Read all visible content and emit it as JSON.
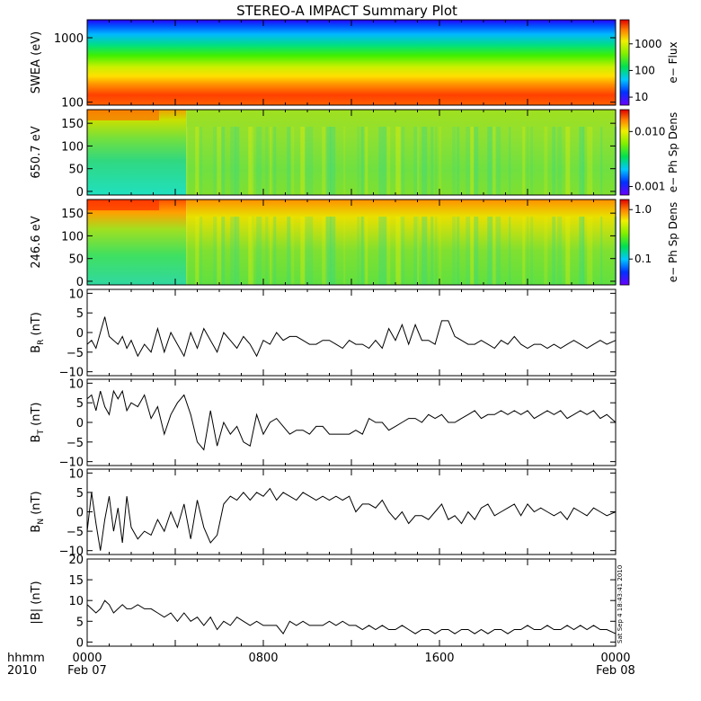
{
  "title": "STEREO-A IMPACT Summary Plot",
  "side_stamp": "Sat Sep  4 18:43:41 2010",
  "time_axis": {
    "corner_top": "hhmm",
    "corner_bottom": "2010",
    "ticks": [
      {
        "hours": 0,
        "label": "0000",
        "sublabel": "Feb 07"
      },
      {
        "hours": 8,
        "label": "0800",
        "sublabel": ""
      },
      {
        "hours": 16,
        "label": "1600",
        "sublabel": ""
      },
      {
        "hours": 24,
        "label": "0000",
        "sublabel": "Feb 08"
      }
    ],
    "range_hours": [
      0,
      24
    ]
  },
  "chart_data": [
    {
      "type": "heatmap",
      "id": "swea",
      "ylabel": "SWEA (eV)",
      "yscale": "log",
      "ylim": [
        90,
        1900
      ],
      "yticks": [
        {
          "v": 100,
          "label": "100"
        },
        {
          "v": 1000,
          "label": "1000"
        }
      ],
      "colorbar": {
        "label": "e− Flux",
        "scale": "log",
        "range": [
          5,
          8000
        ],
        "ticks": [
          {
            "v": 10,
            "label": "10"
          },
          {
            "v": 100,
            "label": "100"
          },
          {
            "v": 1000,
            "label": "1000"
          }
        ]
      }
    },
    {
      "type": "heatmap",
      "id": "pad650",
      "ylabel": "650.7 eV",
      "ylim": [
        -8,
        180
      ],
      "yticks": [
        {
          "v": 0,
          "label": "0"
        },
        {
          "v": 50,
          "label": "50"
        },
        {
          "v": 100,
          "label": "100"
        },
        {
          "v": 150,
          "label": "150"
        }
      ],
      "colorbar": {
        "label": "e− Ph Sp Dens",
        "scale": "log",
        "range": [
          0.0007,
          0.025
        ],
        "ticks": [
          {
            "v": 0.001,
            "label": "0.001"
          },
          {
            "v": 0.01,
            "label": "0.010"
          }
        ]
      }
    },
    {
      "type": "heatmap",
      "id": "pad246",
      "ylabel": "246.6 eV",
      "ylim": [
        -8,
        180
      ],
      "yticks": [
        {
          "v": 0,
          "label": "0"
        },
        {
          "v": 50,
          "label": "50"
        },
        {
          "v": 100,
          "label": "100"
        },
        {
          "v": 150,
          "label": "150"
        }
      ],
      "colorbar": {
        "label": "e− Ph Sp Dens",
        "scale": "log",
        "range": [
          0.03,
          1.6
        ],
        "ticks": [
          {
            "v": 0.1,
            "label": "0.1"
          },
          {
            "v": 1.0,
            "label": "1.0"
          }
        ]
      }
    },
    {
      "type": "line",
      "id": "br",
      "ylabel": "B",
      "ylabel_sub": "R",
      "ylabel_unit": " (nT)",
      "ylim": [
        -11,
        11
      ],
      "yticks": [
        {
          "v": -10,
          "label": "−10"
        },
        {
          "v": -5,
          "label": "−5"
        },
        {
          "v": 0,
          "label": "0"
        },
        {
          "v": 5,
          "label": "5"
        },
        {
          "v": 10,
          "label": "10"
        }
      ],
      "x": [
        0,
        0.2,
        0.4,
        0.6,
        0.8,
        1.0,
        1.2,
        1.4,
        1.6,
        1.8,
        2.0,
        2.3,
        2.6,
        2.9,
        3.2,
        3.5,
        3.8,
        4.1,
        4.4,
        4.7,
        5.0,
        5.3,
        5.6,
        5.9,
        6.2,
        6.5,
        6.8,
        7.1,
        7.4,
        7.7,
        8.0,
        8.3,
        8.6,
        8.9,
        9.2,
        9.5,
        9.8,
        10.1,
        10.4,
        10.7,
        11.0,
        11.3,
        11.6,
        11.9,
        12.2,
        12.5,
        12.8,
        13.1,
        13.4,
        13.7,
        14.0,
        14.3,
        14.6,
        14.9,
        15.2,
        15.5,
        15.8,
        16.1,
        16.4,
        16.7,
        17.0,
        17.3,
        17.6,
        17.9,
        18.2,
        18.5,
        18.8,
        19.1,
        19.4,
        19.7,
        20.0,
        20.3,
        20.6,
        20.9,
        21.2,
        21.5,
        21.8,
        22.1,
        22.4,
        22.7,
        23.0,
        23.3,
        23.6,
        24.0
      ],
      "y": [
        -3,
        -2,
        -4,
        0,
        4,
        -1,
        -2,
        -3,
        -1,
        -4,
        -2,
        -6,
        -3,
        -5,
        1,
        -5,
        0,
        -3,
        -6,
        0,
        -4,
        1,
        -2,
        -5,
        0,
        -2,
        -4,
        -1,
        -3,
        -6,
        -2,
        -3,
        0,
        -2,
        -1,
        -1,
        -2,
        -3,
        -3,
        -2,
        -2,
        -3,
        -4,
        -2,
        -3,
        -3,
        -4,
        -2,
        -4,
        1,
        -2,
        2,
        -3,
        2,
        -2,
        -2,
        -3,
        3,
        3,
        -1,
        -2,
        -3,
        -3,
        -2,
        -3,
        -4,
        -2,
        -3,
        -1,
        -3,
        -4,
        -3,
        -3,
        -4,
        -3,
        -4,
        -3,
        -2,
        -3,
        -4,
        -3,
        -2,
        -3,
        -2
      ]
    },
    {
      "type": "line",
      "id": "bt",
      "ylabel": "B",
      "ylabel_sub": "T",
      "ylabel_unit": " (nT)",
      "ylim": [
        -11,
        11
      ],
      "yticks": [
        {
          "v": -10,
          "label": "−10"
        },
        {
          "v": -5,
          "label": "−5"
        },
        {
          "v": 0,
          "label": "0"
        },
        {
          "v": 5,
          "label": "5"
        },
        {
          "v": 10,
          "label": "10"
        }
      ],
      "x": [
        0,
        0.2,
        0.4,
        0.6,
        0.8,
        1.0,
        1.2,
        1.4,
        1.6,
        1.8,
        2.0,
        2.3,
        2.6,
        2.9,
        3.2,
        3.5,
        3.8,
        4.1,
        4.4,
        4.7,
        5.0,
        5.3,
        5.6,
        5.9,
        6.2,
        6.5,
        6.8,
        7.1,
        7.4,
        7.7,
        8.0,
        8.3,
        8.6,
        8.9,
        9.2,
        9.5,
        9.8,
        10.1,
        10.4,
        10.7,
        11.0,
        11.3,
        11.6,
        11.9,
        12.2,
        12.5,
        12.8,
        13.1,
        13.4,
        13.7,
        14.0,
        14.3,
        14.6,
        14.9,
        15.2,
        15.5,
        15.8,
        16.1,
        16.4,
        16.7,
        17.0,
        17.3,
        17.6,
        17.9,
        18.2,
        18.5,
        18.8,
        19.1,
        19.4,
        19.7,
        20.0,
        20.3,
        20.6,
        20.9,
        21.2,
        21.5,
        21.8,
        22.1,
        22.4,
        22.7,
        23.0,
        23.3,
        23.6,
        24.0
      ],
      "y": [
        6,
        7,
        3,
        8,
        4,
        2,
        8,
        6,
        8,
        3,
        5,
        4,
        7,
        1,
        4,
        -3,
        2,
        5,
        7,
        2,
        -5,
        -7,
        3,
        -6,
        0,
        -3,
        -1,
        -5,
        -6,
        2,
        -3,
        0,
        1,
        -1,
        -3,
        -2,
        -2,
        -3,
        -1,
        -1,
        -3,
        -3,
        -3,
        -3,
        -2,
        -3,
        1,
        0,
        0,
        -2,
        -1,
        0,
        1,
        1,
        0,
        2,
        1,
        2,
        0,
        0,
        1,
        2,
        3,
        1,
        2,
        2,
        3,
        2,
        3,
        2,
        3,
        1,
        2,
        3,
        2,
        3,
        1,
        2,
        3,
        2,
        3,
        1,
        2,
        0
      ]
    },
    {
      "type": "line",
      "id": "bn",
      "ylabel": "B",
      "ylabel_sub": "N",
      "ylabel_unit": " (nT)",
      "ylim": [
        -11,
        11
      ],
      "yticks": [
        {
          "v": -10,
          "label": "−10"
        },
        {
          "v": -5,
          "label": "−5"
        },
        {
          "v": 0,
          "label": "0"
        },
        {
          "v": 5,
          "label": "5"
        },
        {
          "v": 10,
          "label": "10"
        }
      ],
      "x": [
        0,
        0.2,
        0.4,
        0.6,
        0.8,
        1.0,
        1.2,
        1.4,
        1.6,
        1.8,
        2.0,
        2.3,
        2.6,
        2.9,
        3.2,
        3.5,
        3.8,
        4.1,
        4.4,
        4.7,
        5.0,
        5.3,
        5.6,
        5.9,
        6.2,
        6.5,
        6.8,
        7.1,
        7.4,
        7.7,
        8.0,
        8.3,
        8.6,
        8.9,
        9.2,
        9.5,
        9.8,
        10.1,
        10.4,
        10.7,
        11.0,
        11.3,
        11.6,
        11.9,
        12.2,
        12.5,
        12.8,
        13.1,
        13.4,
        13.7,
        14.0,
        14.3,
        14.6,
        14.9,
        15.2,
        15.5,
        15.8,
        16.1,
        16.4,
        16.7,
        17.0,
        17.3,
        17.6,
        17.9,
        18.2,
        18.5,
        18.8,
        19.1,
        19.4,
        19.7,
        20.0,
        20.3,
        20.6,
        20.9,
        21.2,
        21.5,
        21.8,
        22.1,
        22.4,
        22.7,
        23.0,
        23.3,
        23.6,
        24.0
      ],
      "y": [
        -5,
        5,
        -3,
        -10,
        -2,
        4,
        -5,
        1,
        -8,
        4,
        -4,
        -7,
        -5,
        -6,
        -2,
        -5,
        0,
        -4,
        2,
        -7,
        3,
        -4,
        -8,
        -6,
        2,
        4,
        3,
        5,
        3,
        5,
        4,
        6,
        3,
        5,
        4,
        3,
        5,
        4,
        3,
        4,
        3,
        4,
        3,
        4,
        0,
        2,
        2,
        1,
        3,
        0,
        -2,
        0,
        -3,
        -1,
        -1,
        -2,
        0,
        2,
        -2,
        -1,
        -3,
        0,
        -2,
        1,
        2,
        -1,
        0,
        1,
        2,
        -1,
        2,
        0,
        1,
        0,
        -1,
        0,
        -2,
        1,
        0,
        -1,
        1,
        0,
        -1,
        0
      ]
    },
    {
      "type": "line",
      "id": "bmag",
      "ylabel": "|B| (nT)",
      "ylim": [
        -1,
        20
      ],
      "yticks": [
        {
          "v": 0,
          "label": "0"
        },
        {
          "v": 5,
          "label": "5"
        },
        {
          "v": 10,
          "label": "10"
        },
        {
          "v": 15,
          "label": "15"
        },
        {
          "v": 20,
          "label": "20"
        }
      ],
      "x": [
        0,
        0.2,
        0.4,
        0.6,
        0.8,
        1.0,
        1.2,
        1.4,
        1.6,
        1.8,
        2.0,
        2.3,
        2.6,
        2.9,
        3.2,
        3.5,
        3.8,
        4.1,
        4.4,
        4.7,
        5.0,
        5.3,
        5.6,
        5.9,
        6.2,
        6.5,
        6.8,
        7.1,
        7.4,
        7.7,
        8.0,
        8.3,
        8.6,
        8.9,
        9.2,
        9.5,
        9.8,
        10.1,
        10.4,
        10.7,
        11.0,
        11.3,
        11.6,
        11.9,
        12.2,
        12.5,
        12.8,
        13.1,
        13.4,
        13.7,
        14.0,
        14.3,
        14.6,
        14.9,
        15.2,
        15.5,
        15.8,
        16.1,
        16.4,
        16.7,
        17.0,
        17.3,
        17.6,
        17.9,
        18.2,
        18.5,
        18.8,
        19.1,
        19.4,
        19.7,
        20.0,
        20.3,
        20.6,
        20.9,
        21.2,
        21.5,
        21.8,
        22.1,
        22.4,
        22.7,
        23.0,
        23.3,
        23.6,
        24.0
      ],
      "y": [
        9,
        8,
        7,
        8,
        10,
        9,
        7,
        8,
        9,
        8,
        8,
        9,
        8,
        8,
        7,
        6,
        7,
        5,
        7,
        5,
        6,
        4,
        6,
        3,
        5,
        4,
        6,
        5,
        4,
        5,
        4,
        4,
        4,
        2,
        5,
        4,
        5,
        4,
        4,
        4,
        5,
        4,
        5,
        4,
        4,
        3,
        4,
        3,
        4,
        3,
        3,
        4,
        3,
        2,
        3,
        3,
        2,
        3,
        3,
        2,
        3,
        3,
        2,
        3,
        2,
        3,
        3,
        2,
        3,
        3,
        4,
        3,
        3,
        4,
        3,
        3,
        4,
        3,
        4,
        3,
        4,
        3,
        3,
        2
      ]
    }
  ]
}
